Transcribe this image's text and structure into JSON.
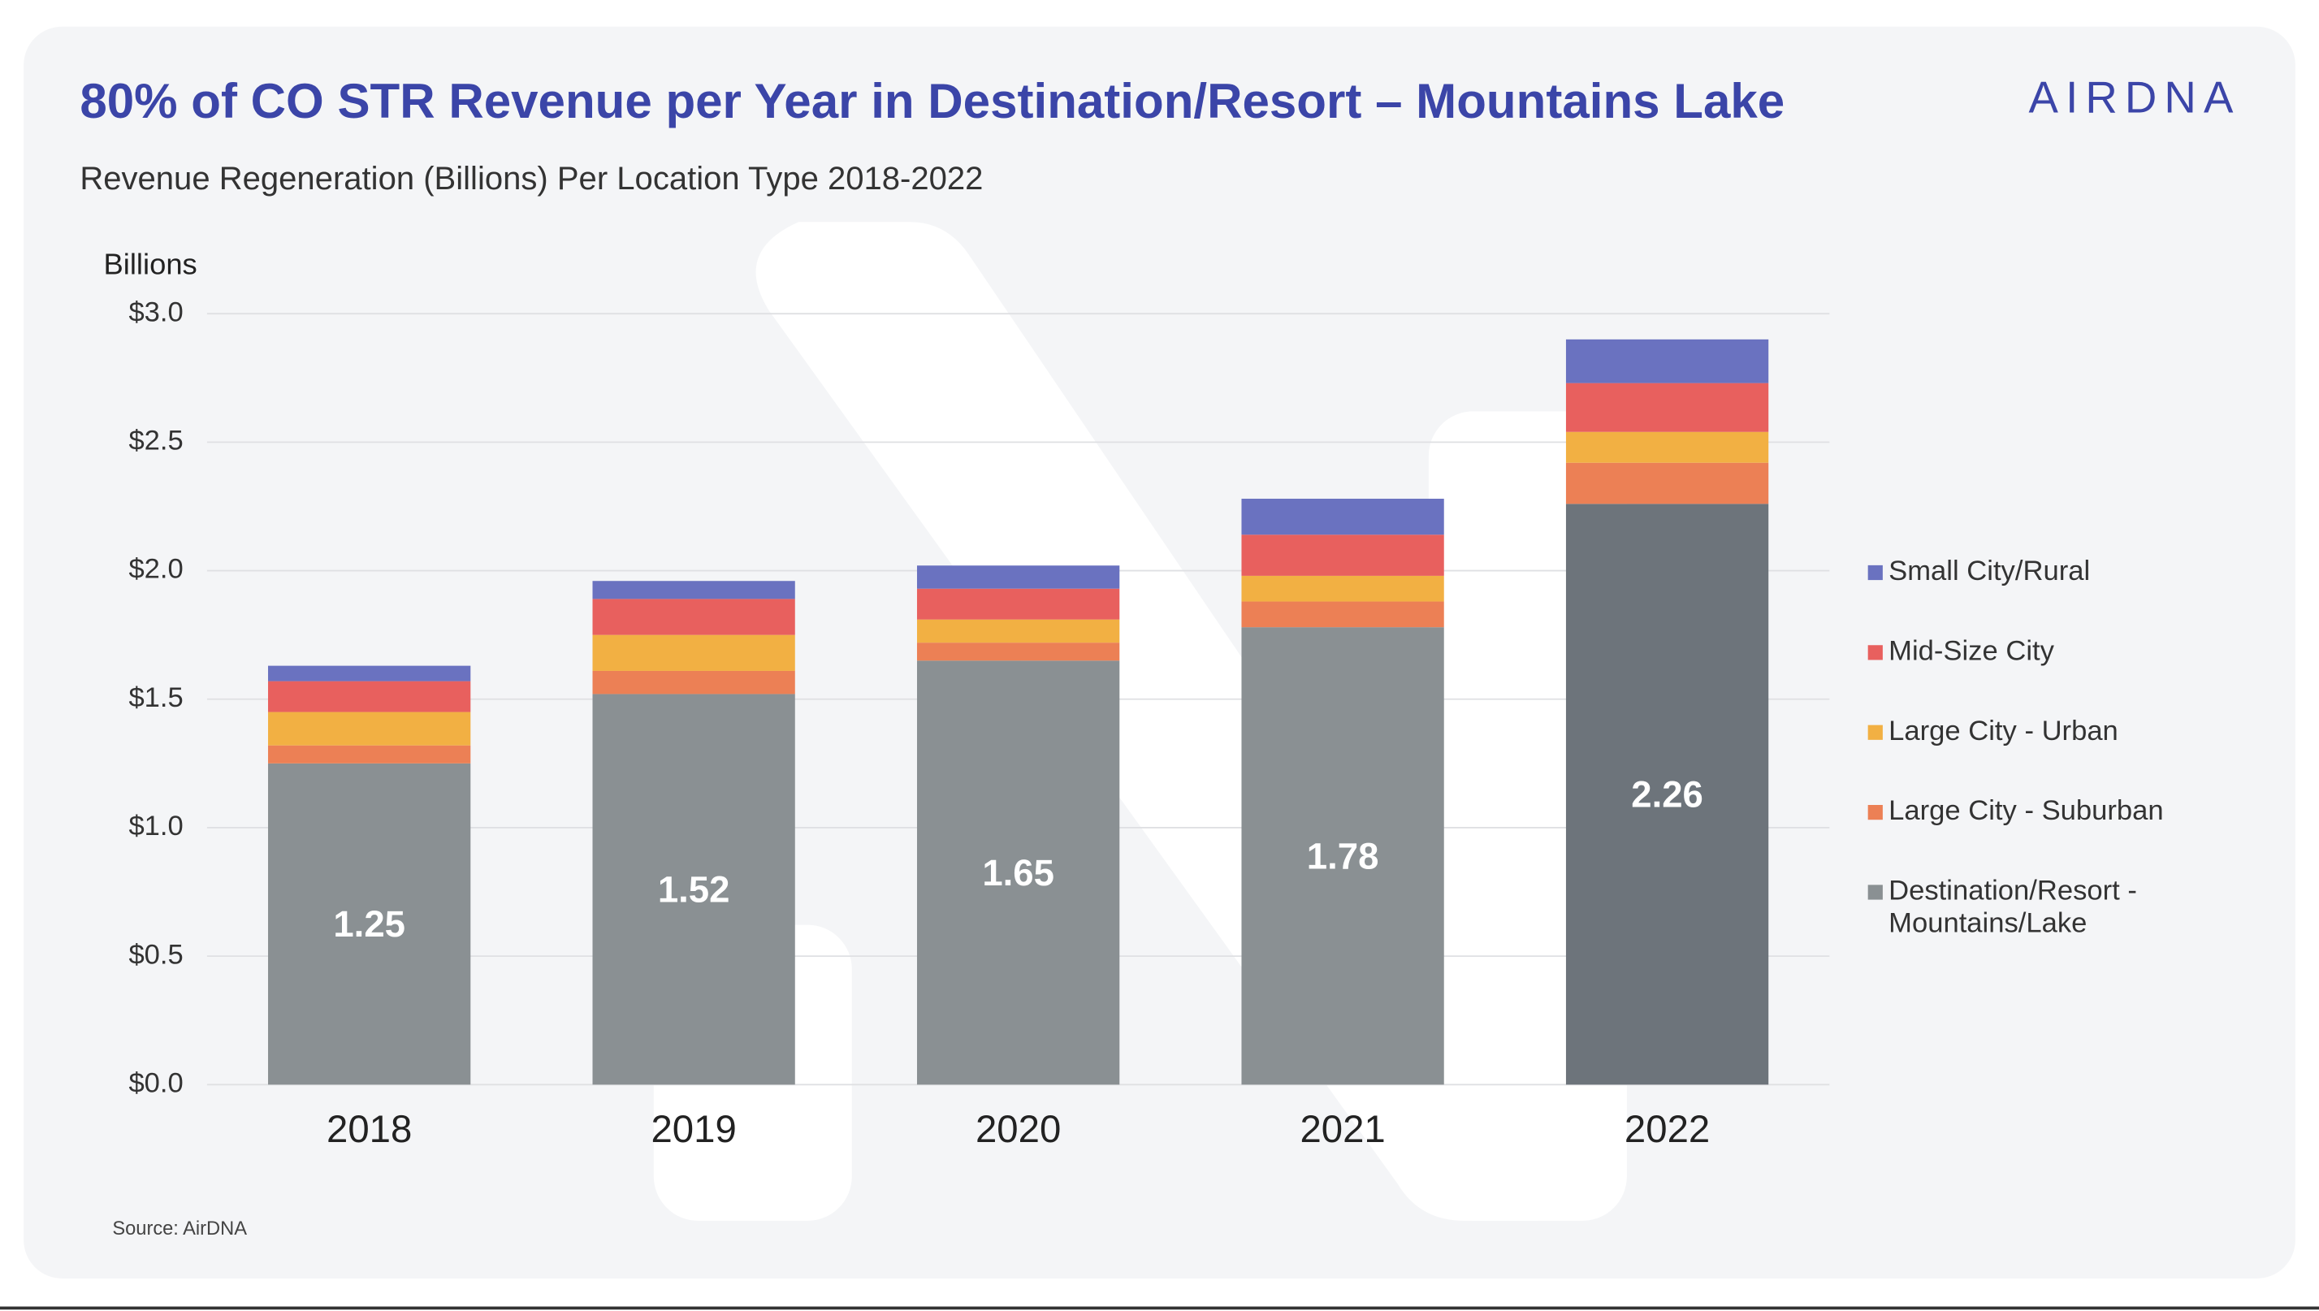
{
  "chart_data": {
    "type": "stacked-bar",
    "title": "80% of CO STR Revenue per Year in Destination/Resort – Mountains Lake",
    "subtitle": "Revenue Regeneration (Billions) Per Location Type 2018-2022",
    "logo": "AIRDNA",
    "ylabel": "Billions",
    "source": "Source: AirDNA",
    "categories": [
      "2018",
      "2019",
      "2020",
      "2021",
      "2022"
    ],
    "series": [
      {
        "name": "Destination/Resort - Mountains/Lake",
        "color": "#8a9093",
        "colors": [
          "#8a9093",
          "#8a9093",
          "#8a9093",
          "#8a9093",
          "#6d747b"
        ],
        "show_labels": true,
        "values": [
          1.25,
          1.52,
          1.65,
          1.78,
          2.26
        ]
      },
      {
        "name": "Large City - Suburban",
        "color": "#ec8055",
        "values": [
          0.07,
          0.09,
          0.07,
          0.1,
          0.16
        ]
      },
      {
        "name": "Large City - Urban",
        "color": "#f2b043",
        "values": [
          0.13,
          0.14,
          0.09,
          0.1,
          0.12
        ]
      },
      {
        "name": "Mid-Size City",
        "color": "#e8605e",
        "values": [
          0.12,
          0.14,
          0.12,
          0.16,
          0.19
        ]
      },
      {
        "name": "Small City/Rural",
        "color": "#6a72c0",
        "values": [
          0.06,
          0.07,
          0.09,
          0.14,
          0.17
        ]
      }
    ],
    "ylim": [
      0,
      3
    ],
    "yticks": [
      {
        "value": 0,
        "label": "$0.0"
      },
      {
        "value": 0.5,
        "label": "$0.5"
      },
      {
        "value": 1,
        "label": "$1.0"
      },
      {
        "value": 1.5,
        "label": "$1.5"
      },
      {
        "value": 2,
        "label": "$2.0"
      },
      {
        "value": 2.5,
        "label": "$2.5"
      },
      {
        "value": 3,
        "label": "$3.0"
      }
    ],
    "grid": true,
    "legend": "right"
  }
}
